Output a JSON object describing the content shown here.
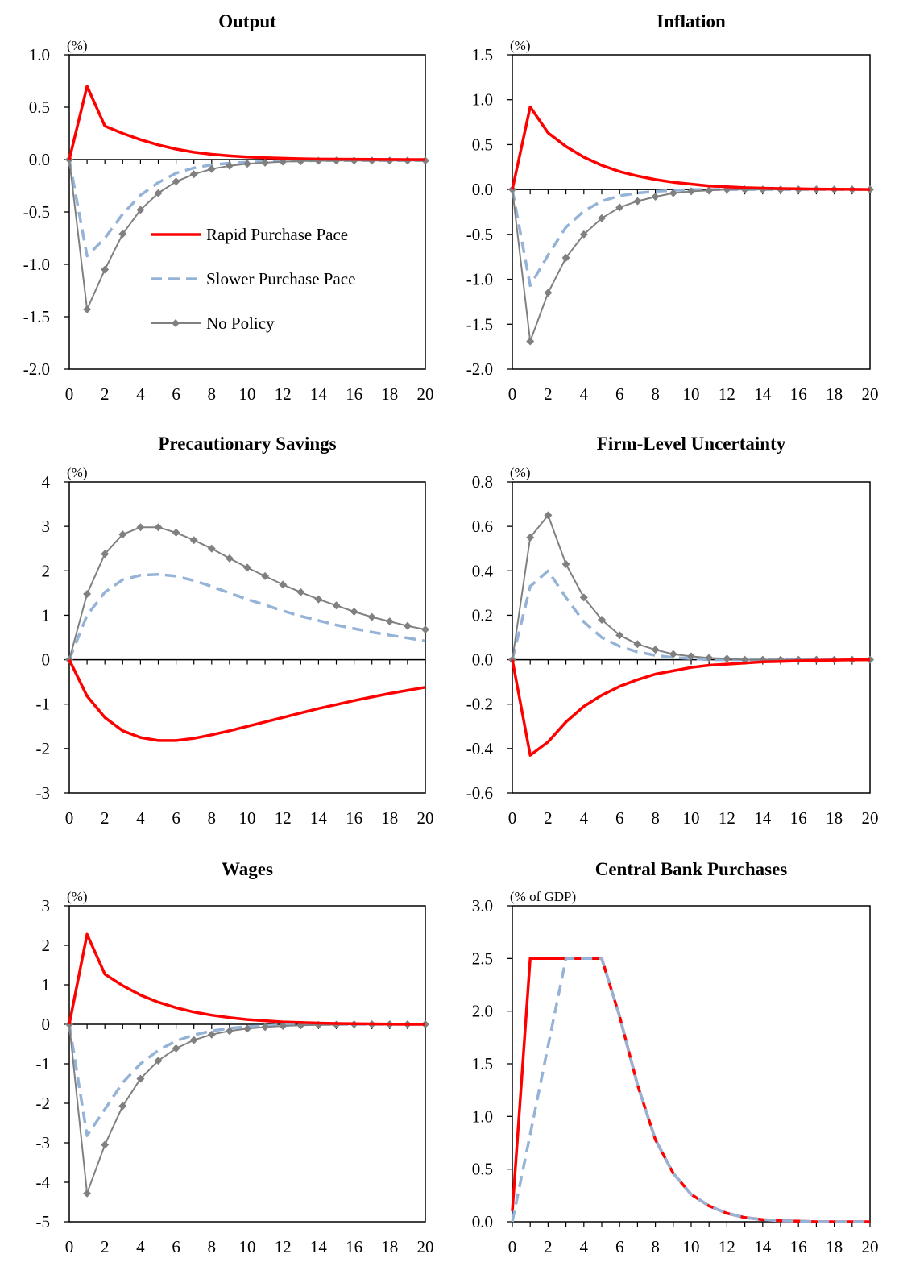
{
  "colors": {
    "rapid": "#ff0000",
    "slower": "#95b3d7",
    "nopolicy": "#808080",
    "axis": "#000000",
    "background": "#ffffff"
  },
  "legend": {
    "items": [
      {
        "key": "rapid",
        "label": "Rapid Purchase Pace",
        "style": "solid"
      },
      {
        "key": "slower",
        "label": "Slower Purchase Pace",
        "style": "dashed"
      },
      {
        "key": "nopolicy",
        "label": "No Policy",
        "style": "solid-diamond"
      }
    ]
  },
  "chart_data": [
    {
      "type": "line",
      "title": "Output",
      "unit_label": "(%)",
      "xlabel": "",
      "ylabel": "",
      "ylim": [
        -2.0,
        1.0
      ],
      "yticks": [
        "1.0",
        "0.5",
        "0.0",
        "-0.5",
        "-1.0",
        "-1.5",
        "-2.0"
      ],
      "yticks_values": [
        1.0,
        0.5,
        0.0,
        -0.5,
        -1.0,
        -1.5,
        -2.0
      ],
      "xlim": [
        0,
        20
      ],
      "xticks": [
        "0",
        "2",
        "4",
        "6",
        "8",
        "10",
        "12",
        "14",
        "16",
        "18",
        "20"
      ],
      "x": [
        0,
        1,
        2,
        3,
        4,
        5,
        6,
        7,
        8,
        9,
        10,
        11,
        12,
        13,
        14,
        15,
        16,
        17,
        18,
        19,
        20
      ],
      "grid": false,
      "legend": "inside-left",
      "series": [
        {
          "name": "Rapid Purchase Pace",
          "key": "rapid",
          "values": [
            0,
            0.7,
            0.32,
            0.25,
            0.19,
            0.14,
            0.1,
            0.07,
            0.05,
            0.035,
            0.025,
            0.018,
            0.012,
            0.008,
            0.005,
            0.004,
            0.003,
            0.002,
            0.001,
            0.0,
            0.0
          ]
        },
        {
          "name": "Slower Purchase Pace",
          "key": "slower",
          "values": [
            0,
            -0.92,
            -0.75,
            -0.52,
            -0.34,
            -0.22,
            -0.13,
            -0.08,
            -0.05,
            -0.035,
            -0.025,
            -0.02,
            -0.015,
            -0.012,
            -0.01,
            -0.01,
            -0.01,
            -0.01,
            -0.01,
            -0.01,
            -0.01
          ]
        },
        {
          "name": "No Policy",
          "key": "nopolicy",
          "values": [
            0,
            -1.43,
            -1.05,
            -0.71,
            -0.48,
            -0.32,
            -0.21,
            -0.14,
            -0.09,
            -0.06,
            -0.04,
            -0.03,
            -0.02,
            -0.015,
            -0.012,
            -0.01,
            -0.01,
            -0.01,
            -0.01,
            -0.01,
            -0.01
          ]
        }
      ]
    },
    {
      "type": "line",
      "title": "Inflation",
      "unit_label": "(%)",
      "xlabel": "",
      "ylabel": "",
      "ylim": [
        -2.0,
        1.5
      ],
      "yticks": [
        "1.5",
        "1.0",
        "0.5",
        "0.0",
        "-0.5",
        "-1.0",
        "-1.5",
        "-2.0"
      ],
      "yticks_values": [
        1.5,
        1.0,
        0.5,
        0.0,
        -0.5,
        -1.0,
        -1.5,
        -2.0
      ],
      "xlim": [
        0,
        20
      ],
      "xticks": [
        "0",
        "2",
        "4",
        "6",
        "8",
        "10",
        "12",
        "14",
        "16",
        "18",
        "20"
      ],
      "x": [
        0,
        1,
        2,
        3,
        4,
        5,
        6,
        7,
        8,
        9,
        10,
        11,
        12,
        13,
        14,
        15,
        16,
        17,
        18,
        19,
        20
      ],
      "grid": false,
      "series": [
        {
          "name": "Rapid Purchase Pace",
          "key": "rapid",
          "values": [
            0,
            0.92,
            0.63,
            0.48,
            0.36,
            0.27,
            0.2,
            0.15,
            0.11,
            0.08,
            0.06,
            0.04,
            0.03,
            0.02,
            0.015,
            0.01,
            0.008,
            0.005,
            0.003,
            0.002,
            0.0
          ]
        },
        {
          "name": "Slower Purchase Pace",
          "key": "slower",
          "values": [
            0,
            -1.07,
            -0.73,
            -0.42,
            -0.24,
            -0.13,
            -0.07,
            -0.04,
            -0.02,
            -0.01,
            0.0,
            0.0,
            0.0,
            0.0,
            0.0,
            0.0,
            0.0,
            0.0,
            0.0,
            0.0,
            0.0
          ]
        },
        {
          "name": "No Policy",
          "key": "nopolicy",
          "values": [
            0,
            -1.69,
            -1.15,
            -0.76,
            -0.5,
            -0.32,
            -0.2,
            -0.13,
            -0.08,
            -0.04,
            -0.02,
            -0.01,
            0.0,
            0.0,
            0.0,
            0.0,
            0.0,
            0.0,
            0.0,
            0.0,
            0.0
          ]
        }
      ]
    },
    {
      "type": "line",
      "title": "Precautionary Savings",
      "unit_label": "(%)",
      "xlabel": "",
      "ylabel": "",
      "ylim": [
        -3,
        4
      ],
      "yticks": [
        "4",
        "3",
        "2",
        "1",
        "0",
        "-1",
        "-2",
        "-3"
      ],
      "yticks_values": [
        4,
        3,
        2,
        1,
        0,
        -1,
        -2,
        -3
      ],
      "xlim": [
        0,
        20
      ],
      "xticks": [
        "0",
        "2",
        "4",
        "6",
        "8",
        "10",
        "12",
        "14",
        "16",
        "18",
        "20"
      ],
      "x": [
        0,
        1,
        2,
        3,
        4,
        5,
        6,
        7,
        8,
        9,
        10,
        11,
        12,
        13,
        14,
        15,
        16,
        17,
        18,
        19,
        20
      ],
      "grid": false,
      "series": [
        {
          "name": "Rapid Purchase Pace",
          "key": "rapid",
          "values": [
            0,
            -0.82,
            -1.3,
            -1.6,
            -1.75,
            -1.82,
            -1.82,
            -1.77,
            -1.69,
            -1.6,
            -1.5,
            -1.4,
            -1.3,
            -1.2,
            -1.1,
            -1.01,
            -0.92,
            -0.84,
            -0.76,
            -0.69,
            -0.62
          ]
        },
        {
          "name": "Slower Purchase Pace",
          "key": "slower",
          "values": [
            0,
            1.0,
            1.52,
            1.8,
            1.9,
            1.92,
            1.88,
            1.78,
            1.65,
            1.5,
            1.36,
            1.23,
            1.1,
            0.98,
            0.88,
            0.78,
            0.7,
            0.62,
            0.55,
            0.49,
            0.42
          ]
        },
        {
          "name": "No Policy",
          "key": "nopolicy",
          "values": [
            0,
            1.48,
            2.38,
            2.82,
            2.98,
            2.98,
            2.86,
            2.69,
            2.5,
            2.28,
            2.07,
            1.88,
            1.69,
            1.52,
            1.36,
            1.22,
            1.08,
            0.96,
            0.86,
            0.76,
            0.68
          ]
        }
      ]
    },
    {
      "type": "line",
      "title": "Firm-Level Uncertainty",
      "unit_label": "(%)",
      "xlabel": "",
      "ylabel": "",
      "ylim": [
        -0.6,
        0.8
      ],
      "yticks": [
        "0.8",
        "0.6",
        "0.4",
        "0.2",
        "0.0",
        "-0.2",
        "-0.4",
        "-0.6"
      ],
      "yticks_values": [
        0.8,
        0.6,
        0.4,
        0.2,
        0.0,
        -0.2,
        -0.4,
        -0.6
      ],
      "xlim": [
        0,
        20
      ],
      "xticks": [
        "0",
        "2",
        "4",
        "6",
        "8",
        "10",
        "12",
        "14",
        "16",
        "18",
        "20"
      ],
      "x": [
        0,
        1,
        2,
        3,
        4,
        5,
        6,
        7,
        8,
        9,
        10,
        11,
        12,
        13,
        14,
        15,
        16,
        17,
        18,
        19,
        20
      ],
      "grid": false,
      "series": [
        {
          "name": "Rapid Purchase Pace",
          "key": "rapid",
          "values": [
            0,
            -0.43,
            -0.37,
            -0.28,
            -0.21,
            -0.16,
            -0.12,
            -0.09,
            -0.065,
            -0.05,
            -0.035,
            -0.025,
            -0.02,
            -0.015,
            -0.01,
            -0.008,
            -0.005,
            -0.003,
            -0.002,
            -0.001,
            0.0
          ]
        },
        {
          "name": "Slower Purchase Pace",
          "key": "slower",
          "values": [
            0,
            0.33,
            0.4,
            0.28,
            0.17,
            0.1,
            0.06,
            0.035,
            0.02,
            0.01,
            0.005,
            0.0,
            0.0,
            0.0,
            0.0,
            0.0,
            0.0,
            0.0,
            0.0,
            0.0,
            0.0
          ]
        },
        {
          "name": "No Policy",
          "key": "nopolicy",
          "values": [
            0,
            0.55,
            0.65,
            0.43,
            0.28,
            0.18,
            0.11,
            0.07,
            0.045,
            0.025,
            0.015,
            0.008,
            0.005,
            0.0,
            0.0,
            0.0,
            0.0,
            0.0,
            0.0,
            0.0,
            0.0
          ]
        }
      ]
    },
    {
      "type": "line",
      "title": "Wages",
      "unit_label": "(%)",
      "xlabel": "",
      "ylabel": "",
      "ylim": [
        -5,
        3
      ],
      "yticks": [
        "3",
        "2",
        "1",
        "0",
        "-1",
        "-2",
        "-3",
        "-4",
        "-5"
      ],
      "yticks_values": [
        3,
        2,
        1,
        0,
        -1,
        -2,
        -3,
        -4,
        -5
      ],
      "xlim": [
        0,
        20
      ],
      "xticks": [
        "0",
        "2",
        "4",
        "6",
        "8",
        "10",
        "12",
        "14",
        "16",
        "18",
        "20"
      ],
      "x": [
        0,
        1,
        2,
        3,
        4,
        5,
        6,
        7,
        8,
        9,
        10,
        11,
        12,
        13,
        14,
        15,
        16,
        17,
        18,
        19,
        20
      ],
      "grid": false,
      "series": [
        {
          "name": "Rapid Purchase Pace",
          "key": "rapid",
          "values": [
            0,
            2.28,
            1.27,
            0.98,
            0.74,
            0.56,
            0.42,
            0.31,
            0.23,
            0.17,
            0.12,
            0.09,
            0.06,
            0.045,
            0.03,
            0.02,
            0.015,
            0.01,
            0.005,
            0.0,
            0.0
          ]
        },
        {
          "name": "Slower Purchase Pace",
          "key": "slower",
          "values": [
            0,
            -2.82,
            -2.15,
            -1.48,
            -1.0,
            -0.66,
            -0.42,
            -0.27,
            -0.17,
            -0.1,
            -0.06,
            -0.04,
            -0.02,
            -0.01,
            0.0,
            0.0,
            0.0,
            0.0,
            0.0,
            0.0,
            0.0
          ]
        },
        {
          "name": "No Policy",
          "key": "nopolicy",
          "values": [
            0,
            -4.28,
            -3.05,
            -2.07,
            -1.38,
            -0.92,
            -0.61,
            -0.4,
            -0.26,
            -0.17,
            -0.11,
            -0.07,
            -0.04,
            -0.025,
            -0.015,
            -0.01,
            0.0,
            0.0,
            0.0,
            0.0,
            0.0
          ]
        }
      ]
    },
    {
      "type": "line",
      "title": "Central Bank Purchases",
      "unit_label": "(% of GDP)",
      "xlabel": "",
      "ylabel": "",
      "ylim": [
        0.0,
        3.0
      ],
      "yticks": [
        "3.0",
        "2.5",
        "2.0",
        "1.5",
        "1.0",
        "0.5",
        "0.0"
      ],
      "yticks_values": [
        3.0,
        2.5,
        2.0,
        1.5,
        1.0,
        0.5,
        0.0
      ],
      "xlim": [
        0,
        20
      ],
      "xticks": [
        "0",
        "2",
        "4",
        "6",
        "8",
        "10",
        "12",
        "14",
        "16",
        "18",
        "20"
      ],
      "x": [
        0,
        1,
        2,
        3,
        4,
        5,
        6,
        7,
        8,
        9,
        10,
        11,
        12,
        13,
        14,
        15,
        16,
        17,
        18,
        19,
        20
      ],
      "grid": false,
      "series": [
        {
          "name": "Rapid Purchase Pace",
          "key": "rapid",
          "values": [
            0.1,
            2.5,
            2.5,
            2.5,
            2.5,
            2.5,
            1.95,
            1.3,
            0.78,
            0.46,
            0.26,
            0.15,
            0.08,
            0.04,
            0.02,
            0.01,
            0.005,
            0.0,
            0.0,
            0.0,
            0.0
          ]
        },
        {
          "name": "Slower Purchase Pace",
          "key": "slower",
          "values": [
            0.0,
            0.83,
            1.67,
            2.5,
            2.5,
            2.5,
            1.95,
            1.3,
            0.78,
            0.46,
            0.26,
            0.15,
            0.08,
            0.04,
            0.02,
            0.01,
            0.005,
            0.0,
            0.0,
            0.0,
            0.0
          ]
        }
      ]
    }
  ]
}
